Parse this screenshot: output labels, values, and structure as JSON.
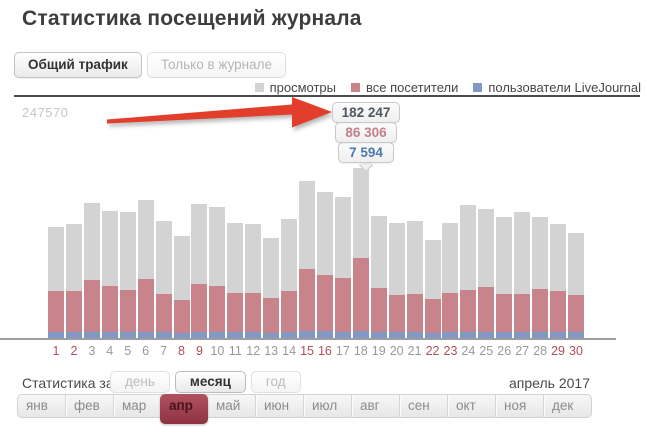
{
  "page": {
    "title": "Статистика посещений журнала"
  },
  "tabs": [
    {
      "label": "Общий трафик",
      "active": true
    },
    {
      "label": "Только в журнале",
      "active": false
    }
  ],
  "legend": {
    "items": [
      {
        "label": "просмотры",
        "color": "#d3d3d3"
      },
      {
        "label": "все посетители",
        "color": "#c8838b"
      },
      {
        "label": "пользователи LiveJournal",
        "color": "#8298c5"
      }
    ]
  },
  "chart_data": {
    "type": "bar",
    "stacked": true,
    "title": "Статистика посещений журнала — апрель 2017",
    "x": [
      1,
      2,
      3,
      4,
      5,
      6,
      7,
      8,
      9,
      10,
      11,
      12,
      13,
      14,
      15,
      16,
      17,
      18,
      19,
      20,
      21,
      22,
      23,
      24,
      25,
      26,
      27,
      28,
      29,
      30
    ],
    "series": [
      {
        "name": "просмотры",
        "color": "#d3d3d3",
        "values": [
          119000,
          123000,
          145000,
          137000,
          135000,
          148000,
          126000,
          110000,
          144000,
          141000,
          124000,
          122000,
          107000,
          128000,
          169000,
          157000,
          152000,
          182247,
          131000,
          124000,
          126000,
          105000,
          124000,
          143000,
          139000,
          130000,
          135000,
          130000,
          122000,
          113000
        ]
      },
      {
        "name": "все посетители",
        "color": "#c8838b",
        "values": [
          51000,
          50500,
          62000,
          56000,
          52000,
          63000,
          47000,
          40500,
          58000,
          56000,
          48500,
          48000,
          43000,
          51000,
          74000,
          68000,
          64000,
          86306,
          54000,
          46000,
          47500,
          41500,
          48500,
          52000,
          55000,
          47500,
          47500,
          53000,
          50000,
          46000
        ]
      },
      {
        "name": "пользователи LiveJournal",
        "color": "#8298c5",
        "values": [
          6200,
          6100,
          6800,
          6500,
          6400,
          6900,
          6300,
          5800,
          6700,
          6600,
          6200,
          6100,
          5900,
          6300,
          7200,
          7000,
          6900,
          7594,
          6500,
          6200,
          6300,
          5900,
          6200,
          6600,
          6500,
          6300,
          6400,
          6500,
          6200,
          6000
        ]
      }
    ],
    "ylim": [
      0,
      260000
    ],
    "y_axis_label": "247570",
    "weekend_days": [
      1,
      2,
      8,
      9,
      15,
      16,
      22,
      23,
      29,
      30
    ],
    "highlighted_day": 18,
    "grid": false,
    "legend_position": "top-right"
  },
  "tooltip": {
    "views": "182 247",
    "visitors": "86 306",
    "users": "7 594"
  },
  "annotation": {
    "arrow_color": "#e23e2b"
  },
  "controls": {
    "label": "Статистика за",
    "period_buttons": [
      {
        "label": "день",
        "active": false
      },
      {
        "label": "месяц",
        "active": true
      },
      {
        "label": "год",
        "active": false
      }
    ],
    "current_period": "апрель 2017"
  },
  "months": {
    "items": [
      "янв",
      "фев",
      "мар",
      "апр",
      "май",
      "июн",
      "июл",
      "авг",
      "сен",
      "окт",
      "ноя",
      "дек"
    ],
    "active_index": 3
  },
  "colors": {
    "weekend_label": "#b34d5c",
    "weekday_label": "#98989a"
  }
}
